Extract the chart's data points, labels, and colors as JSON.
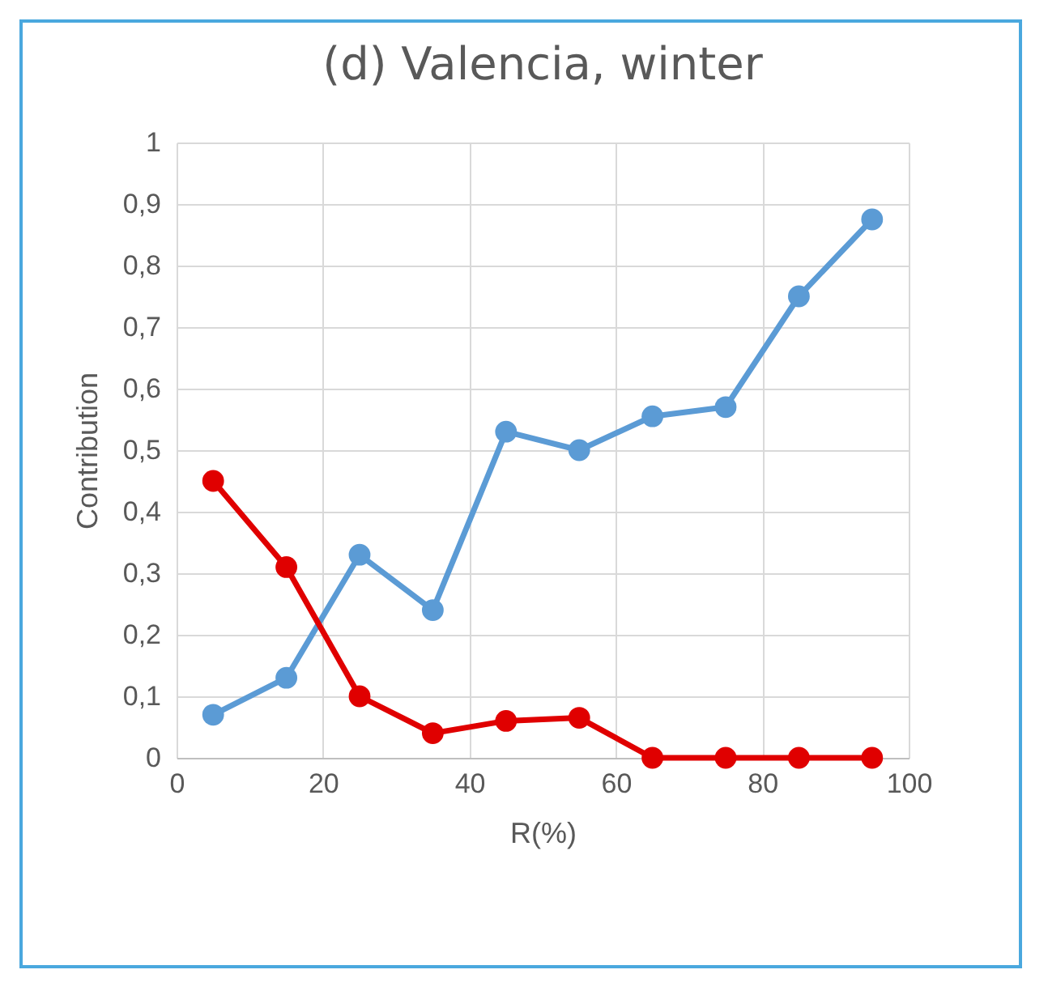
{
  "chart_data": {
    "type": "line",
    "title": "(d) Valencia, winter",
    "xlabel": "R(%)",
    "ylabel": "Contribution",
    "x": [
      5,
      15,
      25,
      35,
      45,
      55,
      65,
      75,
      85,
      95
    ],
    "series": [
      {
        "color": "#5b9bd5",
        "values": [
          0.07,
          0.13,
          0.33,
          0.24,
          0.53,
          0.5,
          0.555,
          0.57,
          0.75,
          0.875
        ]
      },
      {
        "color": "#e00000",
        "values": [
          0.45,
          0.31,
          0.1,
          0.04,
          0.06,
          0.065,
          0,
          0,
          0,
          0
        ]
      }
    ],
    "xlim": [
      0,
      100
    ],
    "xticks": [
      0,
      20,
      40,
      60,
      80,
      100
    ],
    "ylim": [
      0,
      1
    ],
    "yticks": [
      0,
      {
        "value": 0.1,
        "label": "0,1"
      },
      {
        "value": 0.2,
        "label": "0,2"
      },
      {
        "value": 0.3,
        "label": "0,3"
      },
      {
        "value": 0.4,
        "label": "0,4"
      },
      {
        "value": 0.5,
        "label": "0,5"
      },
      {
        "value": 0.6,
        "label": "0,6"
      },
      {
        "value": 0.7,
        "label": "0,7"
      },
      {
        "value": 0.8,
        "label": "0,8"
      },
      {
        "value": 0.9,
        "label": "0,9"
      },
      1
    ],
    "grid": true,
    "marker": "circle",
    "line_style": "solid"
  }
}
